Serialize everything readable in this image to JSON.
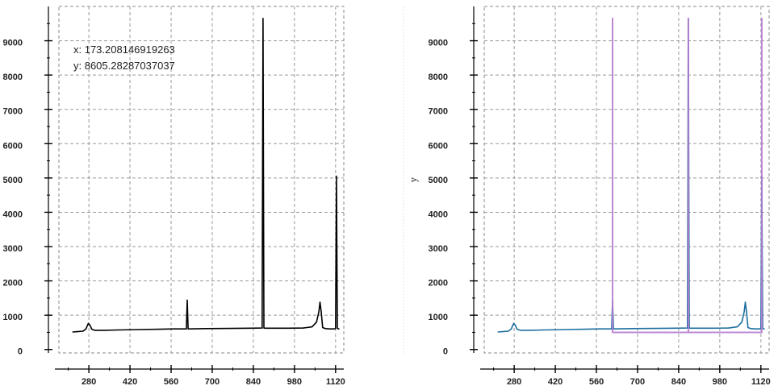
{
  "chart_data": [
    {
      "type": "line",
      "title": "",
      "xlabel": "",
      "ylabel": "",
      "xlim": [
        178,
        1148
      ],
      "ylim": [
        -100,
        10000
      ],
      "x_ticks": [
        280,
        420,
        560,
        700,
        840,
        980,
        1120
      ],
      "y_ticks": [
        0,
        1000,
        2000,
        3000,
        4000,
        5000,
        6000,
        7000,
        8000,
        9000
      ],
      "grid": true,
      "readout": {
        "x_text": "x: 173.208146919263",
        "y_text": "y: 8605.28287037037"
      },
      "series": [
        {
          "color": "#000000",
          "x": [
            225,
            240,
            260,
            270,
            278,
            283,
            290,
            300,
            330,
            380,
            450,
            520,
            570,
            605,
            612,
            615,
            618,
            623,
            680,
            760,
            830,
            870,
            873,
            876,
            880,
            900,
            960,
            1010,
            1040,
            1055,
            1063,
            1067,
            1071,
            1076,
            1085,
            1100,
            1115,
            1120,
            1123,
            1126,
            1130,
            1132
          ],
          "y": [
            510,
            520,
            535,
            600,
            760,
            720,
            590,
            560,
            560,
            570,
            580,
            590,
            600,
            600,
            600,
            1440,
            600,
            600,
            610,
            615,
            620,
            625,
            9650,
            625,
            620,
            620,
            620,
            625,
            660,
            800,
            1100,
            1380,
            1100,
            640,
            610,
            600,
            600,
            610,
            5050,
            620,
            600,
            600
          ]
        }
      ]
    },
    {
      "type": "line",
      "title": "",
      "xlabel": "",
      "ylabel": "y",
      "xlim": [
        178,
        1148
      ],
      "ylim": [
        -100,
        10000
      ],
      "x_ticks": [
        280,
        420,
        560,
        700,
        840,
        980,
        1120
      ],
      "y_ticks": [
        0,
        1000,
        2000,
        3000,
        4000,
        5000,
        6000,
        7000,
        8000,
        9000
      ],
      "grid": true,
      "series": [
        {
          "color": "#1f6fa0",
          "x": [
            225,
            240,
            260,
            270,
            278,
            283,
            290,
            300,
            330,
            380,
            450,
            520,
            570,
            605,
            612,
            615,
            618,
            623,
            680,
            760,
            830,
            870,
            873,
            876,
            880,
            900,
            960,
            1010,
            1040,
            1055,
            1063,
            1067,
            1071,
            1076,
            1085,
            1100,
            1115,
            1120,
            1123,
            1126,
            1130,
            1132
          ],
          "y": [
            510,
            520,
            535,
            600,
            760,
            720,
            590,
            560,
            560,
            570,
            580,
            590,
            600,
            600,
            600,
            1440,
            600,
            600,
            610,
            615,
            620,
            625,
            9650,
            625,
            620,
            620,
            620,
            625,
            660,
            800,
            1100,
            1380,
            1100,
            640,
            610,
            600,
            600,
            610,
            5050,
            620,
            600,
            600
          ]
        },
        {
          "color": "#b57cd0",
          "x": [
            615,
            615,
            615,
            873,
            873,
            873,
            1123,
            1123,
            1123
          ],
          "y": [
            500,
            9650,
            500,
            500,
            9650,
            500,
            500,
            9650,
            500
          ]
        }
      ]
    }
  ]
}
